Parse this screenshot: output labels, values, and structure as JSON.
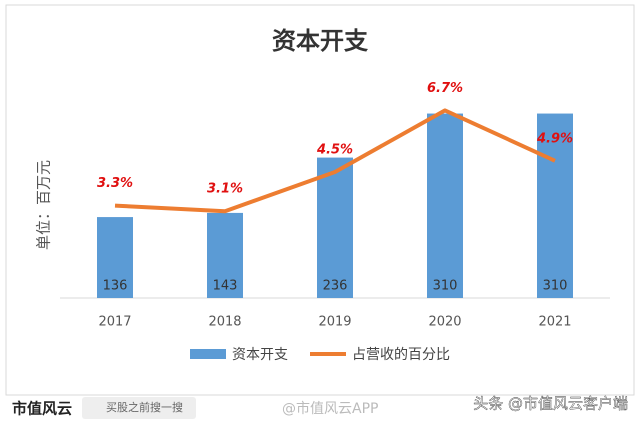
{
  "chart_data": {
    "type": "combo",
    "title": "资本开支",
    "y_label": "单位：百万元",
    "categories": [
      "2017",
      "2018",
      "2019",
      "2020",
      "2021"
    ],
    "ylim": [
      0,
      400
    ],
    "y2lim": [
      0,
      8.5
    ],
    "legend": "bottom",
    "series": [
      {
        "name": "资本开支",
        "type": "bar",
        "color": "#5b9bd5",
        "values": [
          136,
          143,
          236,
          310,
          310
        ]
      },
      {
        "name": "占营收的百分比",
        "type": "line",
        "axis": "y2",
        "color": "#ed7d31",
        "values": [
          3.3,
          3.1,
          4.5,
          6.7,
          4.9
        ],
        "value_labels": [
          "3.3%",
          "3.1%",
          "4.5%",
          "6.7%",
          "4.9%"
        ]
      }
    ]
  },
  "footer": {
    "brand": "市值风云",
    "search": "买股之前搜一搜",
    "weibo": "@市值风云APP",
    "toutiao": "头条 @市值风云客户端"
  }
}
